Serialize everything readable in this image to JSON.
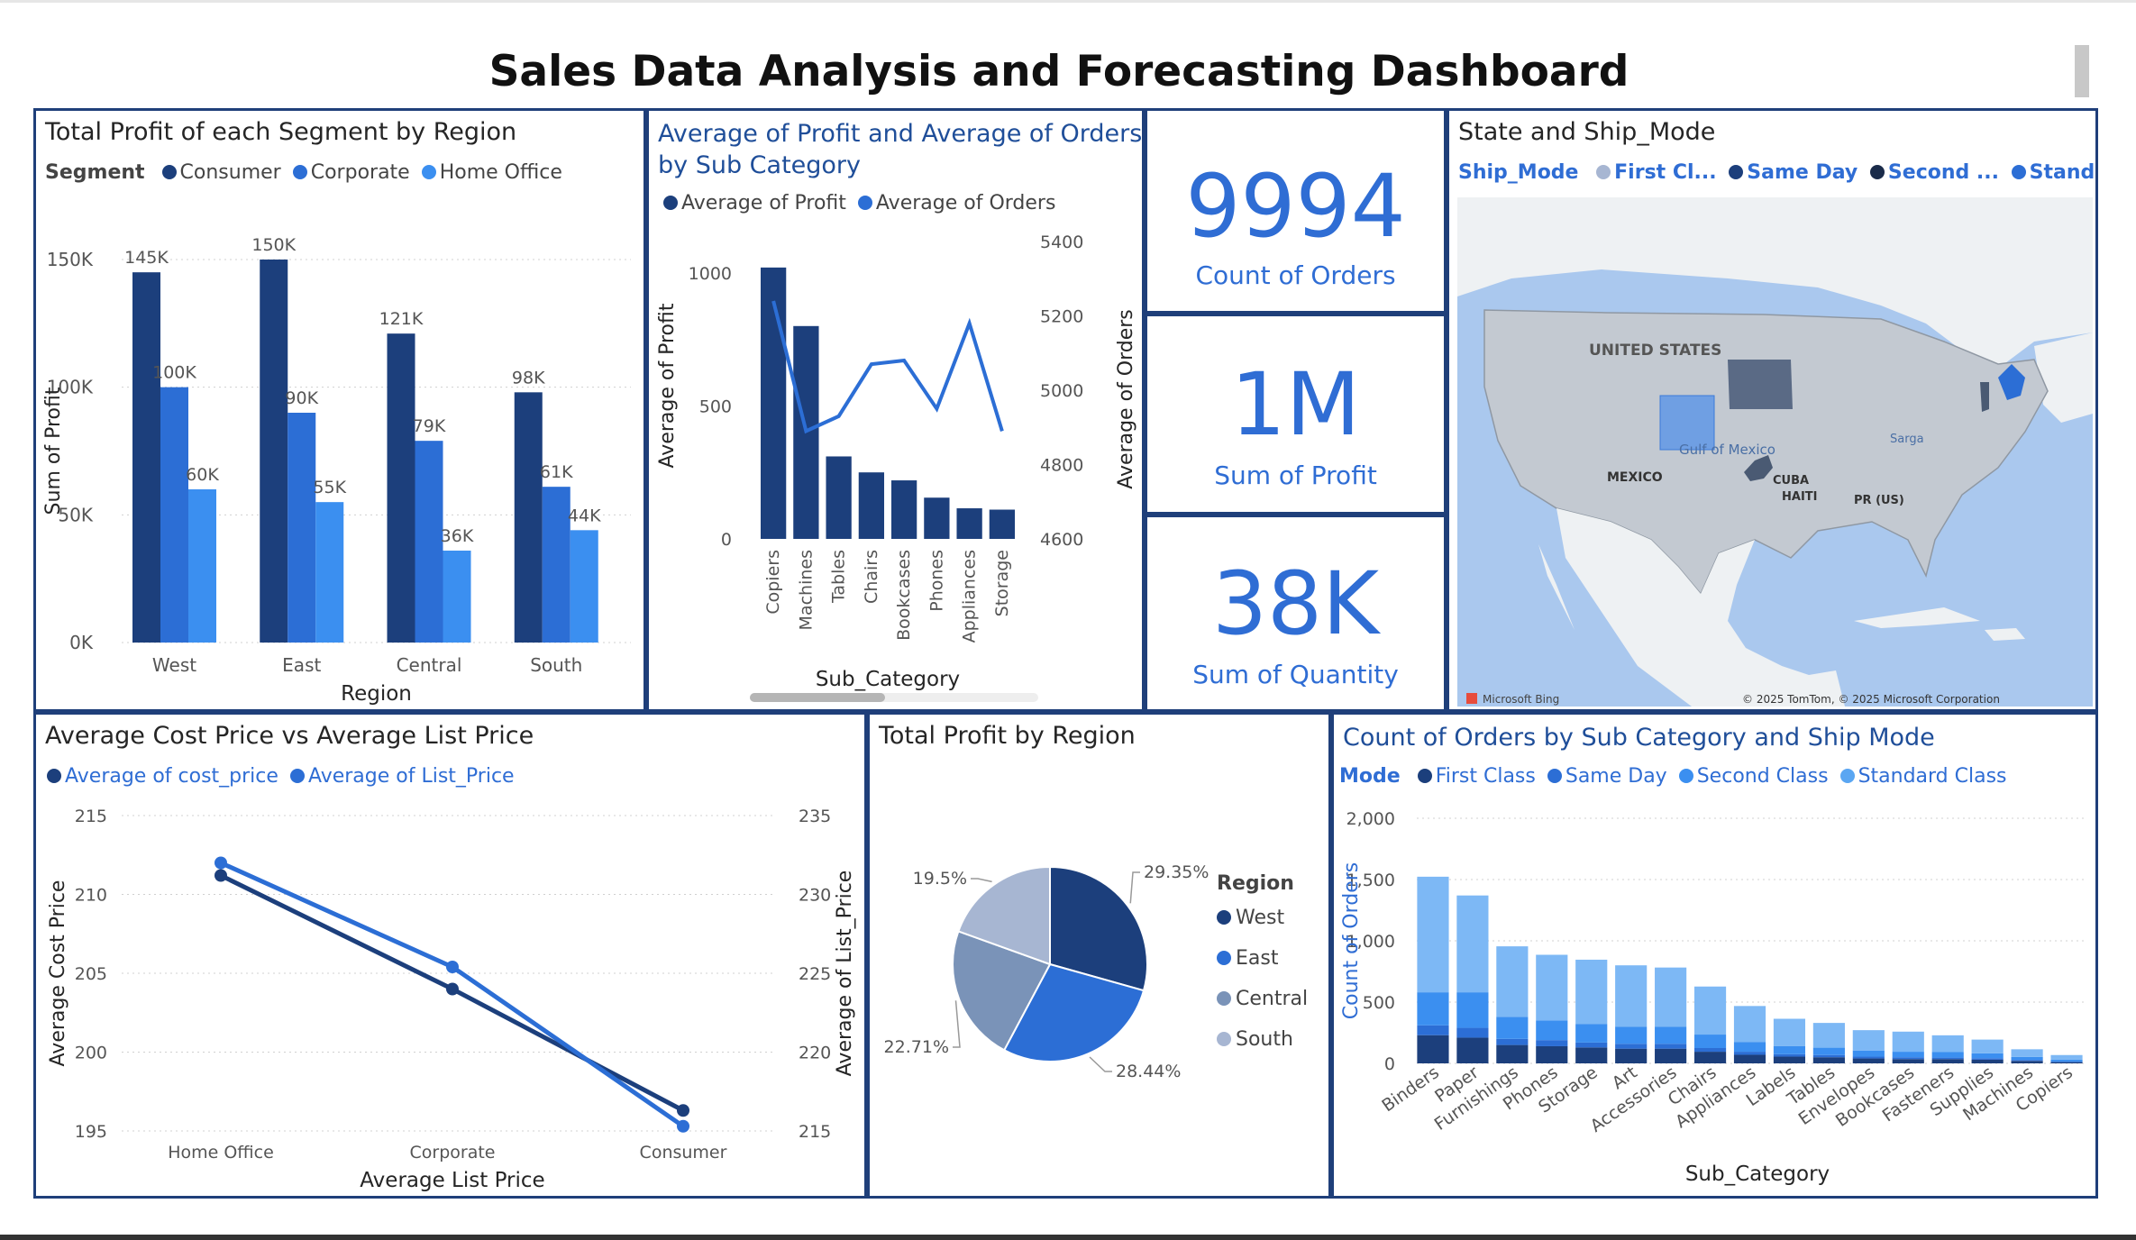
{
  "dashboard": {
    "title": "Sales Data Analysis and Forecasting Dashboard"
  },
  "colors": {
    "navy": "#1c3f7c",
    "mid": "#2c6ed5",
    "light": "#3b8ff0",
    "lighter": "#5aa6f2",
    "lightest": "#7db8f5",
    "gray_blue": "#7a93b8",
    "pale": "#a7b6d2",
    "border": "#1f3f7a",
    "accent": "#2f6dd4"
  },
  "panels": {
    "segment_region": {
      "title": "Total Profit of each Segment by Region",
      "legend_title": "Segment",
      "legend": [
        "Consumer",
        "Corporate",
        "Home Office"
      ]
    },
    "profit_orders_subcat": {
      "title": "Average of Profit and Average of Orders by Sub Category",
      "legend": [
        "Average of Profit",
        "Average of Orders"
      ]
    },
    "kpi": [
      {
        "value": "9994",
        "label": "Count of Orders"
      },
      {
        "value": "1M",
        "label": "Sum of Profit"
      },
      {
        "value": "38K",
        "label": "Sum of Quantity"
      }
    ],
    "map": {
      "title": "State and Ship_Mode",
      "legend_title": "Ship_Mode",
      "legend": [
        "First Cl...",
        "Same Day",
        "Second ...",
        "Standa..."
      ],
      "labels": {
        "country": "UNITED STATES",
        "gulf": "Gulf of Mexico",
        "mexico": "MEXICO",
        "cuba": "CUBA",
        "haiti": "HAITI",
        "pr": "PR (US)",
        "sarg": "Sarga",
        "bing": "Microsoft Bing",
        "copyright": "© 2025 TomTom, © 2025 Microsoft Corporation"
      }
    },
    "cost_list": {
      "title": "Average Cost Price vs Average List Price",
      "legend": [
        "Average of cost_price",
        "Average of List_Price"
      ]
    },
    "profit_region": {
      "title": "Total Profit by Region",
      "legend_title": "Region"
    },
    "orders_subcat_ship": {
      "title": "Count of Orders by Sub Category and Ship Mode",
      "legend_title": "Mode",
      "legend": [
        "First Class",
        "Same Day",
        "Second Class",
        "Standard Class"
      ]
    }
  },
  "chart_data": [
    {
      "id": "segment_region",
      "type": "bar",
      "title": "Total Profit of each Segment by Region",
      "xlabel": "Region",
      "ylabel": "Sum of Profit",
      "categories": [
        "West",
        "East",
        "Central",
        "South"
      ],
      "series": [
        {
          "name": "Consumer",
          "values": [
            145,
            150,
            121,
            98
          ],
          "labels": [
            "145K",
            "150K",
            "121K",
            "98K"
          ]
        },
        {
          "name": "Corporate",
          "values": [
            100,
            90,
            79,
            61
          ],
          "labels": [
            "100K",
            "90K",
            "79K",
            "61K"
          ]
        },
        {
          "name": "Home Office",
          "values": [
            60,
            55,
            36,
            44
          ],
          "labels": [
            "60K",
            "55K",
            "36K",
            "44K"
          ]
        }
      ],
      "ylim": [
        0,
        150
      ],
      "yticks": [
        {
          "v": 0,
          "t": "0K"
        },
        {
          "v": 50,
          "t": "50K"
        },
        {
          "v": 100,
          "t": "100K"
        },
        {
          "v": 150,
          "t": "150K"
        }
      ]
    },
    {
      "id": "profit_orders_subcat",
      "type": "bar",
      "title": "Average of Profit and Average of Orders by Sub Category",
      "xlabel": "Sub_Category",
      "ylabel": "Average of Profit",
      "y2label": "Average of Orders",
      "categories": [
        "Copiers",
        "Machines",
        "Tables",
        "Chairs",
        "Bookcases",
        "Phones",
        "Appliances",
        "Storage"
      ],
      "series": [
        {
          "name": "Average of Profit",
          "values": [
            1020,
            800,
            310,
            250,
            220,
            155,
            115,
            110
          ]
        },
        {
          "name": "Average of Orders",
          "values": [
            5240,
            4890,
            4930,
            5070,
            5080,
            4950,
            5180,
            4890
          ]
        }
      ],
      "ylim": [
        0,
        1050
      ],
      "yticks": [
        {
          "v": 0,
          "t": "0"
        },
        {
          "v": 500,
          "t": "500"
        },
        {
          "v": 1000,
          "t": "1000"
        }
      ],
      "y2lim": [
        4600,
        5400
      ],
      "y2ticks": [
        {
          "v": 4600,
          "t": "4600"
        },
        {
          "v": 4800,
          "t": "4800"
        },
        {
          "v": 5000,
          "t": "5000"
        },
        {
          "v": 5200,
          "t": "5200"
        },
        {
          "v": 5400,
          "t": "5400"
        }
      ]
    },
    {
      "id": "cost_list",
      "type": "line",
      "title": "Average Cost Price vs Average List Price",
      "xlabel": "Average List Price",
      "ylabel": "Average Cost Price",
      "y2label": "Average of List_Price",
      "categories": [
        "Home Office",
        "Corporate",
        "Consumer"
      ],
      "series": [
        {
          "name": "Average of cost_price",
          "values": [
            211.2,
            204.0,
            196.3
          ]
        },
        {
          "name": "Average of List_Price",
          "values": [
            232.0,
            225.4,
            215.3
          ]
        }
      ],
      "ylim": [
        195,
        215
      ],
      "yticks": [
        {
          "v": 195,
          "t": "195"
        },
        {
          "v": 200,
          "t": "200"
        },
        {
          "v": 205,
          "t": "205"
        },
        {
          "v": 210,
          "t": "210"
        },
        {
          "v": 215,
          "t": "215"
        }
      ],
      "y2lim": [
        215,
        235
      ],
      "y2ticks": [
        {
          "v": 215,
          "t": "215"
        },
        {
          "v": 220,
          "t": "220"
        },
        {
          "v": 225,
          "t": "225"
        },
        {
          "v": 230,
          "t": "230"
        },
        {
          "v": 235,
          "t": "235"
        }
      ]
    },
    {
      "id": "profit_region",
      "type": "pie",
      "title": "Total Profit by Region",
      "slices": [
        {
          "name": "West",
          "value": 29.35,
          "label": "29.35%"
        },
        {
          "name": "East",
          "value": 28.44,
          "label": "28.44%"
        },
        {
          "name": "Central",
          "value": 22.71,
          "label": "22.71%"
        },
        {
          "name": "South",
          "value": 19.5,
          "label": "19.5%"
        }
      ]
    },
    {
      "id": "orders_subcat_ship",
      "type": "bar",
      "stacked": true,
      "title": "Count of Orders by Sub Category and Ship Mode",
      "xlabel": "Sub_Category",
      "ylabel": "Count of Orders",
      "categories": [
        "Binders",
        "Paper",
        "Furnishings",
        "Phones",
        "Storage",
        "Art",
        "Accessories",
        "Chairs",
        "Appliances",
        "Labels",
        "Tables",
        "Envelopes",
        "Bookcases",
        "Fasteners",
        "Supplies",
        "Machines",
        "Copiers"
      ],
      "series": [
        {
          "name": "First Class",
          "values": [
            230,
            210,
            150,
            140,
            130,
            120,
            120,
            95,
            70,
            55,
            50,
            40,
            35,
            35,
            30,
            20,
            10
          ]
        },
        {
          "name": "Same Day",
          "values": [
            80,
            80,
            50,
            50,
            40,
            40,
            40,
            30,
            25,
            20,
            18,
            15,
            15,
            12,
            12,
            8,
            5
          ]
        },
        {
          "name": "Second Class",
          "values": [
            270,
            290,
            180,
            160,
            150,
            140,
            140,
            110,
            80,
            65,
            60,
            50,
            45,
            45,
            40,
            25,
            15
          ]
        },
        {
          "name": "Standard Class",
          "values": [
            943,
            790,
            575,
            536,
            526,
            500,
            482,
            392,
            293,
            224,
            202,
            166,
            164,
            137,
            112,
            62,
            38
          ]
        }
      ],
      "ylim": [
        0,
        2000
      ],
      "yticks": [
        {
          "v": 0,
          "t": "0"
        },
        {
          "v": 500,
          "t": "500"
        },
        {
          "v": 1000,
          "t": "1,000"
        },
        {
          "v": 1500,
          "t": "1,500"
        },
        {
          "v": 2000,
          "t": "2,000"
        }
      ]
    }
  ]
}
